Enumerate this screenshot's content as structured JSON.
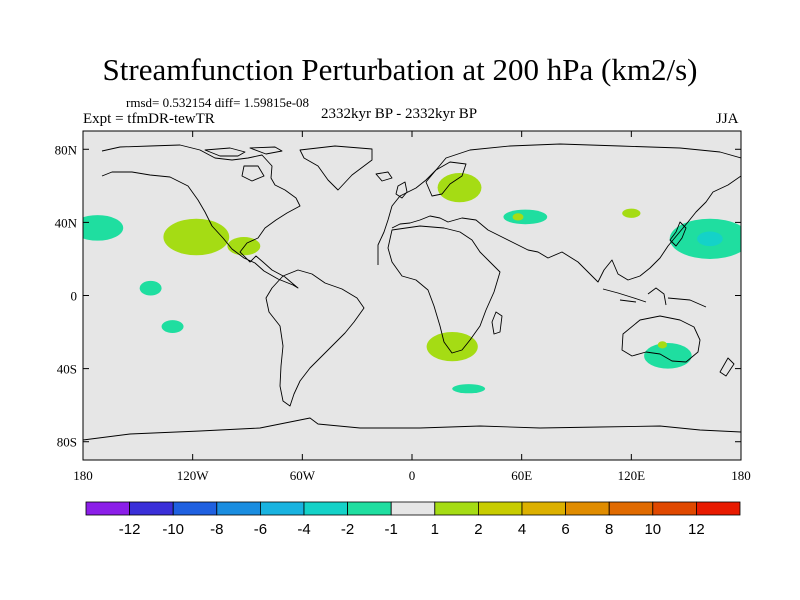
{
  "title": "Streamfunction Perturbation at 200 hPa (km2/s)",
  "stats_text": "rmsd= 0.532154 diff= 1.59815e-08",
  "experiment_text": "Expt = tfmDR-tewTR",
  "period_text": "2332kyr BP - 2332kyr BP",
  "season": "JJA",
  "map": {
    "lon_ticks": [
      {
        "lon": -180,
        "label": "180"
      },
      {
        "lon": -120,
        "label": "120W"
      },
      {
        "lon": -60,
        "label": "60W"
      },
      {
        "lon": 0,
        "label": "0"
      },
      {
        "lon": 60,
        "label": "60E"
      },
      {
        "lon": 120,
        "label": "120E"
      },
      {
        "lon": 180,
        "label": "180"
      }
    ],
    "lat_ticks": [
      {
        "lat": 80,
        "label": "80N"
      },
      {
        "lat": 40,
        "label": "40N"
      },
      {
        "lat": 0,
        "label": "0"
      },
      {
        "lat": -40,
        "label": "40S"
      },
      {
        "lat": -80,
        "label": "80S"
      }
    ],
    "lat_range": [
      -90,
      90
    ],
    "lon_range": [
      -180,
      180
    ],
    "background_color": "#e6e6e6",
    "features": [
      {
        "name": "north-pacific-west-negative",
        "lon": -172,
        "lat": 37,
        "rlon": 14,
        "rlat": 7,
        "bin": "-2..-1"
      },
      {
        "name": "north-pacific-east-positive",
        "lon": -118,
        "lat": 32,
        "rlon": 18,
        "rlat": 10,
        "bin": "1..2"
      },
      {
        "name": "mexico-positive",
        "lon": -92,
        "lat": 27,
        "rlon": 9,
        "rlat": 5,
        "bin": "1..2"
      },
      {
        "name": "tropical-pacific-negative-1",
        "lon": -143,
        "lat": 4,
        "rlon": 6,
        "rlat": 4,
        "bin": "-2..-1"
      },
      {
        "name": "tropical-pacific-negative-2",
        "lon": -131,
        "lat": -17,
        "rlon": 6,
        "rlat": 3.5,
        "bin": "-2..-1"
      },
      {
        "name": "scandinavia-positive",
        "lon": 26,
        "lat": 59,
        "rlon": 12,
        "rlat": 8,
        "bin": "1..2"
      },
      {
        "name": "central-asia-negative",
        "lon": 62,
        "lat": 43,
        "rlon": 12,
        "rlat": 4,
        "bin": "-2..-1"
      },
      {
        "name": "central-asia-inner-positive",
        "lon": 58,
        "lat": 43,
        "rlon": 3,
        "rlat": 2,
        "bin": "1..2"
      },
      {
        "name": "mongolia-positive",
        "lon": 120,
        "lat": 45,
        "rlon": 5,
        "rlat": 2.5,
        "bin": "1..2"
      },
      {
        "name": "north-pacific-northeast-negative",
        "lon": 163,
        "lat": 31,
        "rlon": 22,
        "rlat": 11,
        "bin": "-2..-1"
      },
      {
        "name": "north-pacific-northeast-core",
        "lon": 163,
        "lat": 31,
        "rlon": 7,
        "rlat": 4,
        "bin": "-4..-2"
      },
      {
        "name": "south-africa-positive",
        "lon": 22,
        "lat": -28,
        "rlon": 14,
        "rlat": 8,
        "bin": "1..2"
      },
      {
        "name": "southern-ocean-negative",
        "lon": 31,
        "lat": -51,
        "rlon": 9,
        "rlat": 2.5,
        "bin": "-2..-1"
      },
      {
        "name": "australia-negative",
        "lon": 140,
        "lat": -33,
        "rlon": 13,
        "rlat": 7,
        "bin": "-2..-1"
      },
      {
        "name": "australia-inner-positive",
        "lon": 137,
        "lat": -27,
        "rlon": 2.5,
        "rlat": 2,
        "bin": "1..2"
      }
    ]
  },
  "colorbar": {
    "colors": [
      "#8b1ee8",
      "#3a2fd8",
      "#1f60e0",
      "#1a8de0",
      "#19b3e0",
      "#14d2c8",
      "#1fdea0",
      "#e6e6e6",
      "#a5dc14",
      "#c8cc00",
      "#dcb000",
      "#e08c00",
      "#e06a00",
      "#e04800",
      "#e81a00"
    ],
    "bins": [
      "<-12",
      "-12..-10",
      "-10..-8",
      "-8..-6",
      "-6..-4",
      "-4..-2",
      "-2..-1",
      "-1..1",
      "1..2",
      "2..4",
      "4..6",
      "6..8",
      "8..10",
      "10..12",
      ">12"
    ],
    "labels": [
      "-12",
      "-10",
      "-8",
      "-6",
      "-4",
      "-2",
      "-1",
      "1",
      "2",
      "4",
      "6",
      "8",
      "10",
      "12"
    ]
  }
}
